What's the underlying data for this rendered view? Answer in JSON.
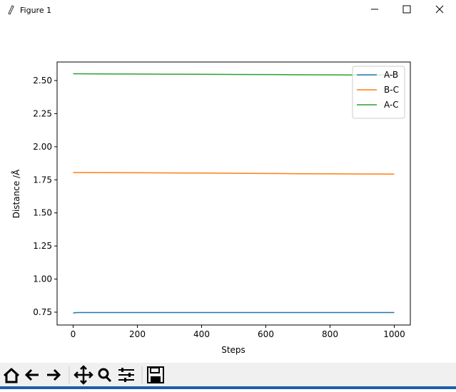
{
  "window": {
    "title": "Figure 1"
  },
  "chart_data": {
    "type": "line",
    "x_label": "Steps",
    "y_label": "Distance /Å",
    "x": [
      0,
      10,
      100,
      200,
      300,
      400,
      500,
      600,
      700,
      800,
      900,
      1000
    ],
    "series": [
      {
        "name": "A-B",
        "color": "#1f77b4",
        "values": [
          0.743,
          0.747,
          0.747,
          0.747,
          0.747,
          0.747,
          0.747,
          0.747,
          0.747,
          0.747,
          0.747,
          0.747
        ]
      },
      {
        "name": "B-C",
        "color": "#ff7f0e",
        "values": [
          1.805,
          1.805,
          1.804,
          1.803,
          1.802,
          1.801,
          1.799,
          1.798,
          1.796,
          1.795,
          1.794,
          1.793
        ]
      },
      {
        "name": "A-C",
        "color": "#2ca02c",
        "values": [
          2.551,
          2.551,
          2.55,
          2.549,
          2.548,
          2.547,
          2.546,
          2.545,
          2.544,
          2.543,
          2.542,
          2.541
        ]
      }
    ],
    "xlim": [
      -50,
      1050
    ],
    "ylim": [
      0.653,
      2.64
    ],
    "xticks": [
      0,
      200,
      400,
      600,
      800,
      1000
    ],
    "yticks": [
      0.75,
      {
        "value": 1,
        "label": "1.00"
      },
      1.25,
      {
        "value": 1.5,
        "label": "1.50"
      },
      1.75,
      {
        "value": 2,
        "label": "2.00"
      },
      2.25,
      {
        "value": 2.5,
        "label": "2.50"
      }
    ],
    "legend": "upper right"
  }
}
